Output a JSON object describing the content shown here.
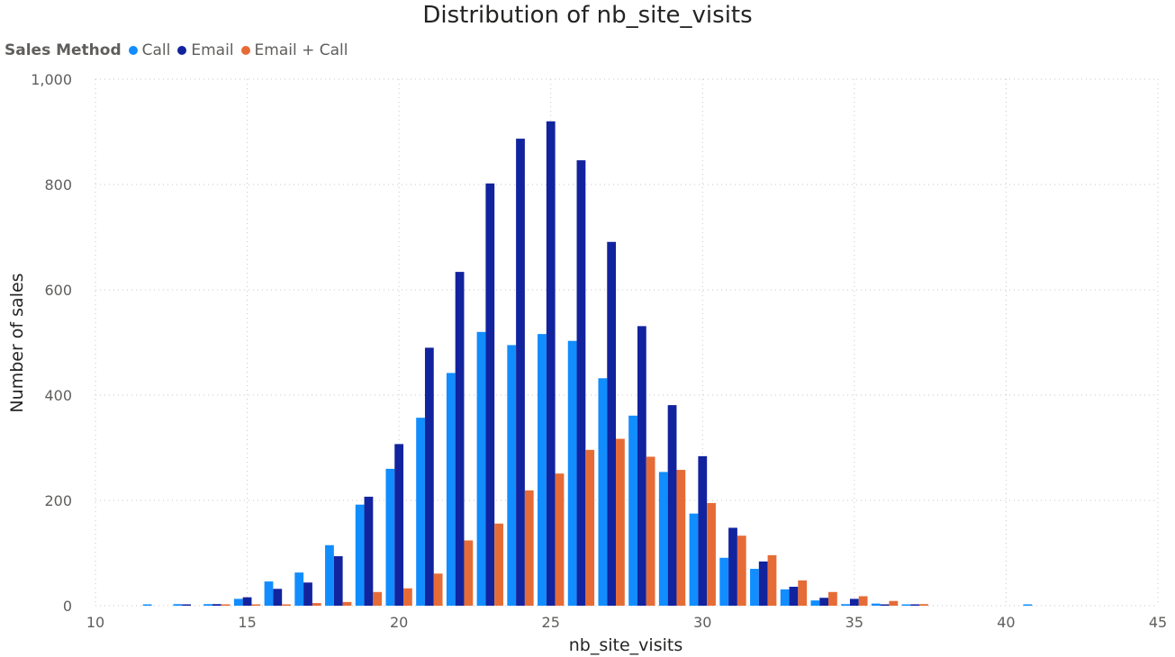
{
  "chart_data": {
    "type": "bar",
    "title": "Distribution of nb_site_visits",
    "xlabel": "nb_site_visits",
    "ylabel": "Number of sales",
    "legend_title": "Sales Method",
    "legend_position": "top-left",
    "grid": true,
    "xlim": [
      10,
      45
    ],
    "ylim": [
      0,
      1000
    ],
    "x_ticks": [
      10,
      15,
      20,
      25,
      30,
      35,
      40,
      45
    ],
    "y_ticks": [
      0,
      200,
      400,
      600,
      800,
      1000
    ],
    "y_tick_labels": [
      "0",
      "200",
      "400",
      "600",
      "800",
      "1,000"
    ],
    "x": [
      12,
      13,
      14,
      15,
      16,
      17,
      18,
      19,
      20,
      21,
      22,
      23,
      24,
      25,
      26,
      27,
      28,
      29,
      30,
      31,
      32,
      33,
      34,
      35,
      36,
      37,
      41
    ],
    "series": [
      {
        "name": "Call",
        "color": "#118dff",
        "values": [
          2,
          3,
          3,
          13,
          46,
          63,
          115,
          192,
          260,
          357,
          442,
          520,
          495,
          516,
          503,
          432,
          361,
          254,
          175,
          91,
          70,
          31,
          10,
          3,
          4,
          2,
          2
        ]
      },
      {
        "name": "Email",
        "color": "#12239e",
        "values": [
          0,
          2,
          3,
          16,
          32,
          44,
          94,
          207,
          307,
          490,
          634,
          802,
          887,
          920,
          846,
          691,
          531,
          381,
          284,
          148,
          84,
          36,
          15,
          13,
          2,
          2,
          0
        ]
      },
      {
        "name": "Email + Call",
        "color": "#e66c37",
        "values": [
          0,
          0,
          1,
          1,
          1,
          5,
          7,
          26,
          33,
          61,
          124,
          156,
          219,
          251,
          296,
          317,
          283,
          258,
          195,
          133,
          96,
          48,
          26,
          18,
          9,
          3,
          0
        ]
      }
    ]
  }
}
